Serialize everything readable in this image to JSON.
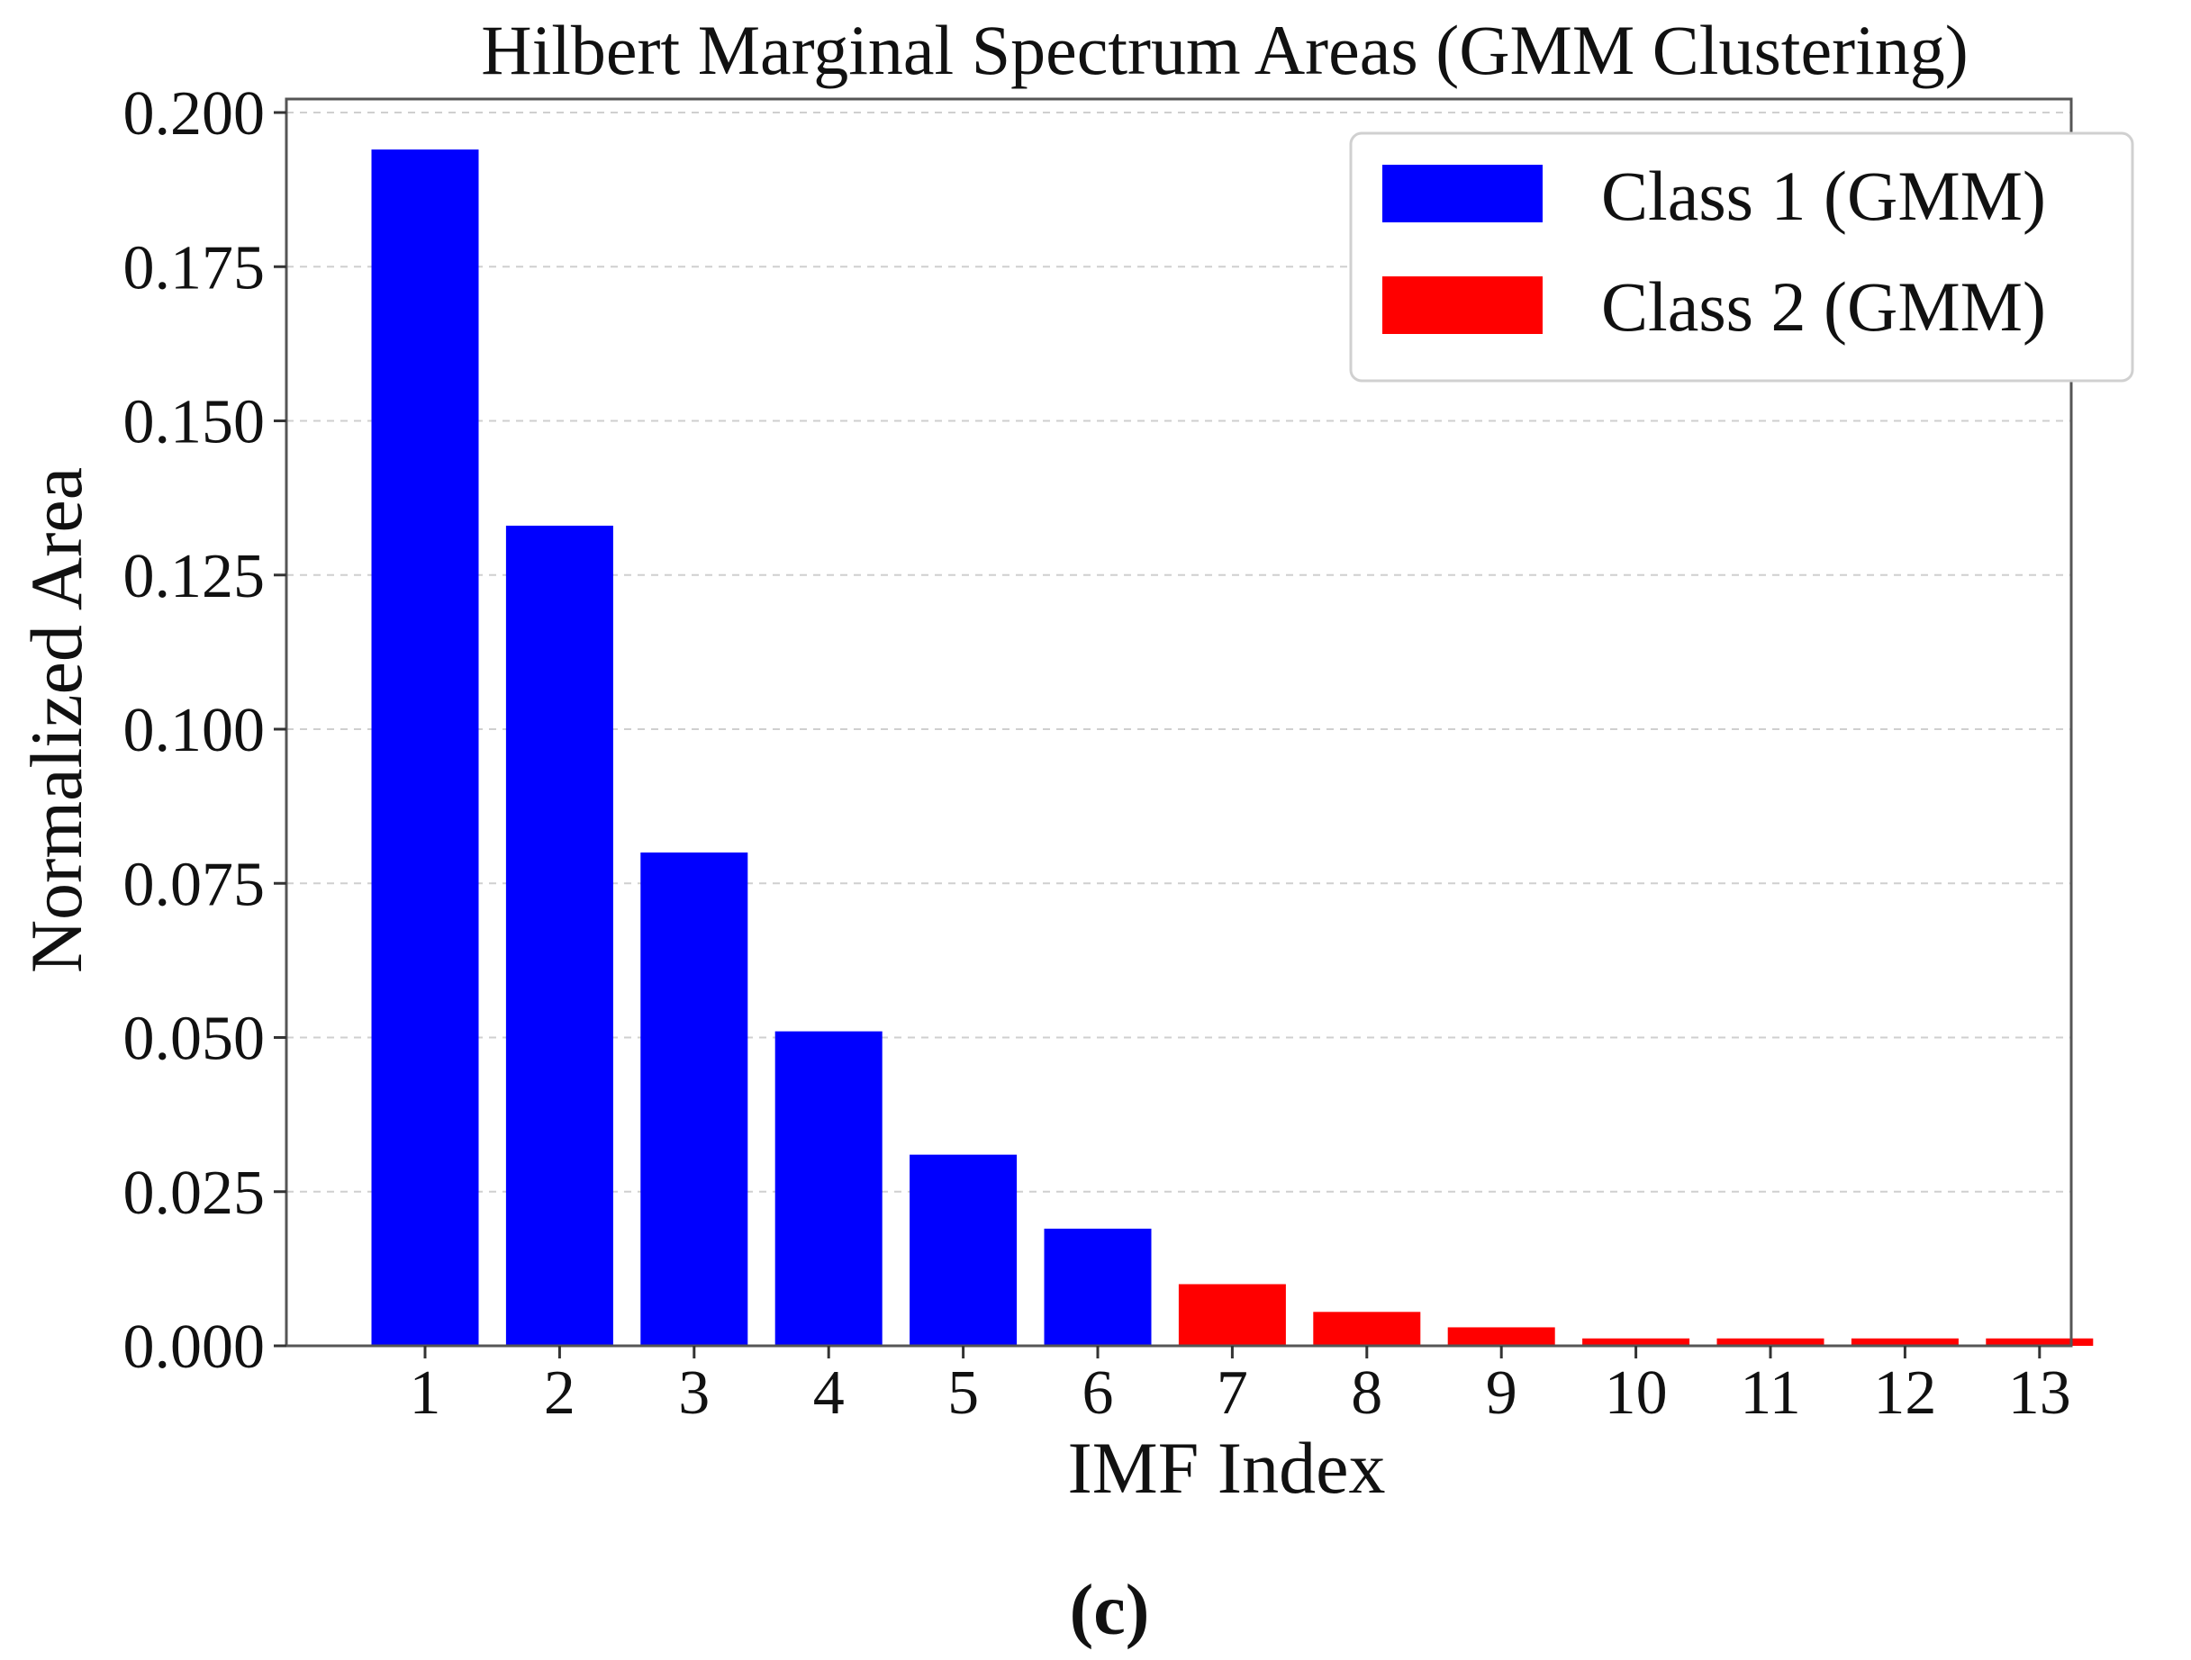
{
  "chart_data": {
    "type": "bar",
    "title": "Hilbert Marginal Spectrum Areas (GMM Clustering)",
    "xlabel": "IMF Index",
    "ylabel": "Normalized Area",
    "categories": [
      "1",
      "2",
      "3",
      "4",
      "5",
      "6",
      "7",
      "8",
      "9",
      "10",
      "11",
      "12",
      "13"
    ],
    "values": [
      0.194,
      0.133,
      0.08,
      0.051,
      0.031,
      0.019,
      0.01,
      0.0055,
      0.003,
      0.0012,
      0.0012,
      0.0012,
      0.0012
    ],
    "classes": [
      1,
      1,
      1,
      1,
      1,
      1,
      2,
      2,
      2,
      2,
      2,
      2,
      2
    ],
    "ylim": [
      0,
      0.2
    ],
    "yticks": [
      0.0,
      0.025,
      0.05,
      0.075,
      0.1,
      0.125,
      0.15,
      0.175,
      0.2
    ],
    "ytick_labels": [
      "0.000",
      "0.025",
      "0.050",
      "0.075",
      "0.100",
      "0.125",
      "0.150",
      "0.175",
      "0.200"
    ],
    "grid": "horizontal-dashed",
    "legend_position": "top-right",
    "legend": [
      {
        "label": "Class 1 (GMM)",
        "color": "#0000ff"
      },
      {
        "label": "Class 2 (GMM)",
        "color": "#ff0000"
      }
    ]
  },
  "caption": "(c)"
}
